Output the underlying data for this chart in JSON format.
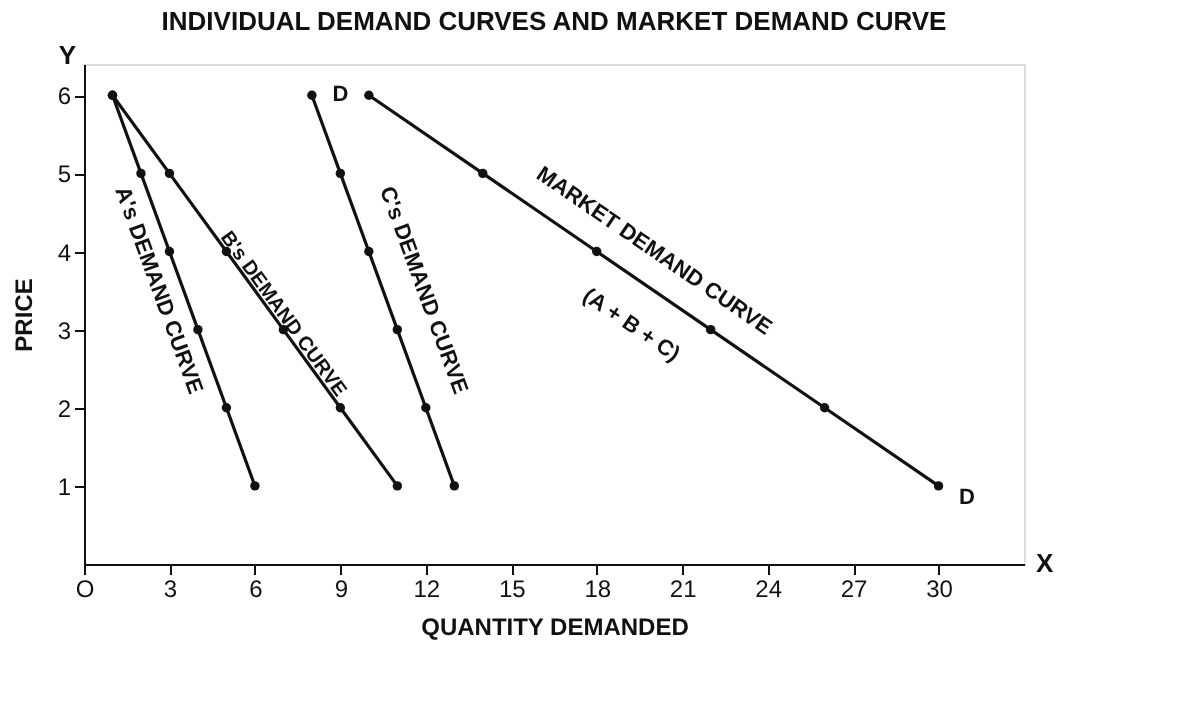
{
  "chart_data": {
    "type": "line",
    "title": "INDIVIDUAL DEMAND CURVES AND MARKET DEMAND CURVE",
    "xlabel": "QUANTITY DEMANDED",
    "ylabel": "PRICE",
    "series": [
      {
        "name": "A's DEMAND CURVE",
        "color": "#111111",
        "x": [
          1,
          2,
          3,
          4,
          5,
          6
        ],
        "values": [
          6,
          5,
          4,
          3,
          2,
          1
        ]
      },
      {
        "name": "B's DEMAND CURVE",
        "color": "#111111",
        "x": [
          1,
          3,
          5,
          7,
          9,
          11
        ],
        "values": [
          6,
          5,
          4,
          3,
          2,
          1
        ]
      },
      {
        "name": "C's DEMAND CURVE",
        "color": "#111111",
        "x": [
          8,
          9,
          10,
          11,
          12,
          13
        ],
        "values": [
          6,
          5,
          4,
          3,
          2,
          1
        ]
      },
      {
        "name": "MARKET DEMAND CURVE",
        "color": "#111111",
        "x": [
          10,
          14,
          18,
          22,
          26,
          30
        ],
        "values": [
          6,
          5,
          4,
          3,
          2,
          1
        ]
      }
    ],
    "annotations": [
      "(A + B + C)",
      "D",
      "D",
      "X",
      "Y"
    ],
    "xlim": [
      0,
      33
    ],
    "ylim": [
      0,
      6.4
    ],
    "xticks": [
      {
        "value": 0,
        "label": "O"
      },
      3,
      6,
      9,
      12,
      15,
      18,
      21,
      24,
      27,
      30
    ],
    "yticks": [
      1,
      2,
      3,
      4,
      5,
      6
    ],
    "grid": false,
    "marker": "circle",
    "line_style": "solid"
  }
}
